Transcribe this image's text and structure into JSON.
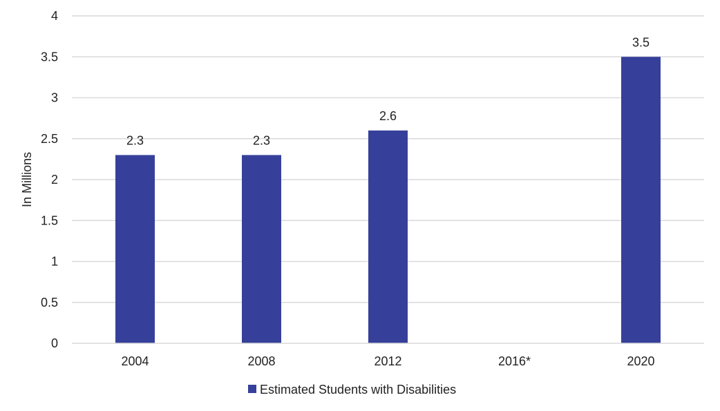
{
  "chart_data": {
    "type": "bar",
    "categories": [
      "2004",
      "2008",
      "2012",
      "2016*",
      "2020"
    ],
    "series": [
      {
        "name": "Estimated Students with Disabilities",
        "values": [
          2.3,
          2.3,
          2.6,
          null,
          3.5
        ],
        "color": "#36409A"
      }
    ],
    "data_labels": [
      "2.3",
      "2.3",
      "2.6",
      "",
      "3.5"
    ],
    "ylabel": "In Millions",
    "ylim": [
      0,
      4
    ],
    "yticks": [
      "0",
      "0.5",
      "1",
      "1.5",
      "2",
      "2.5",
      "3",
      "3.5",
      "4"
    ],
    "grid": true,
    "gridline_color": "#d9d9d9",
    "legend_position": "bottom"
  }
}
